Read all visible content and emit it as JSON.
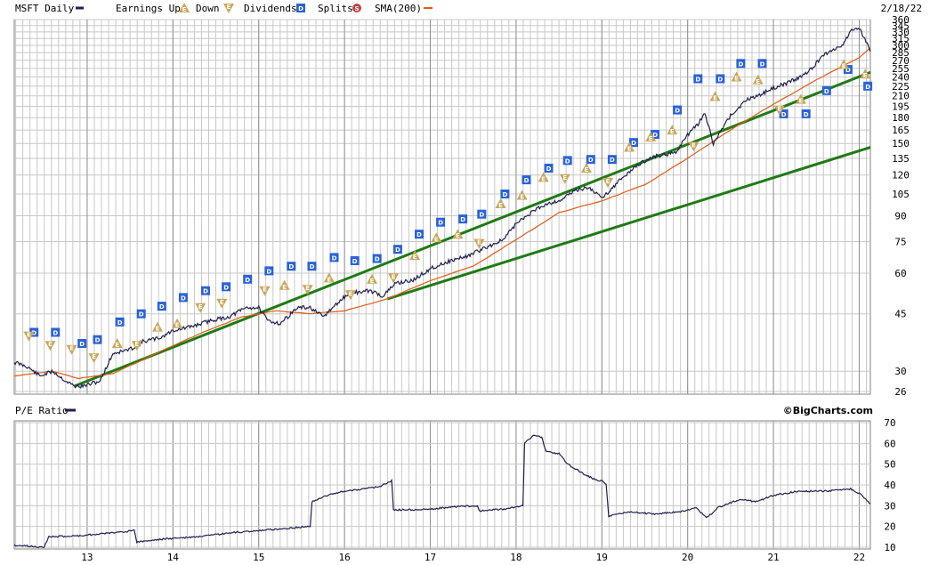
{
  "header": {
    "symbol_label": "MSFT Daily",
    "earnings_up_label": "Earnings Up",
    "earnings_down_label": "Down",
    "dividends_label": "Dividends",
    "splits_label": "Splits",
    "sma_label": "SMA(200)",
    "date": "2/18/22"
  },
  "lower_header": {
    "pe_label": "P/E Ratio",
    "brand": "©BigCharts.com"
  },
  "colors": {
    "price": "#20204e",
    "sma": "#e05a14",
    "trendline": "#1f7a14",
    "dividend": "#2a62d8",
    "earnings": "#c9a65a",
    "split": "#c94040",
    "grid": "#c8c8c8"
  },
  "icons": {
    "earnings_up": "triangle-up-E",
    "earnings_down": "triangle-down-E",
    "dividend": "blue-square-D",
    "split": "red-circle-S"
  },
  "chart_data": [
    {
      "type": "line",
      "scale": "log",
      "x_ticks": [
        "13",
        "14",
        "15",
        "16",
        "17",
        "18",
        "19",
        "20",
        "21",
        "22"
      ],
      "x_tick_values": [
        2013,
        2014,
        2015,
        2016,
        2017,
        2018,
        2019,
        2020,
        2021,
        2022
      ],
      "xlim": [
        2012.15,
        2022.13
      ],
      "y_ticks": [
        26,
        30,
        45,
        60,
        75,
        90,
        105,
        120,
        135,
        150,
        165,
        180,
        195,
        210,
        225,
        240,
        255,
        270,
        285,
        300,
        315,
        330,
        345,
        360
      ],
      "ylim": [
        26,
        360
      ],
      "series": [
        {
          "name": "MSFT Daily",
          "x": [
            2012.15,
            2012.3,
            2012.45,
            2012.6,
            2012.75,
            2012.85,
            2012.95,
            2013.15,
            2013.3,
            2013.5,
            2013.65,
            2013.85,
            2014.0,
            2014.2,
            2014.45,
            2014.65,
            2014.85,
            2015.0,
            2015.1,
            2015.25,
            2015.45,
            2015.6,
            2015.75,
            2015.9,
            2016.05,
            2016.3,
            2016.45,
            2016.6,
            2016.8,
            2017.0,
            2017.2,
            2017.45,
            2017.65,
            2017.85,
            2018.0,
            2018.2,
            2018.35,
            2018.5,
            2018.7,
            2018.85,
            2019.0,
            2019.2,
            2019.4,
            2019.6,
            2019.85,
            2020.0,
            2020.12,
            2020.2,
            2020.3,
            2020.5,
            2020.7,
            2020.9,
            2021.0,
            2021.2,
            2021.4,
            2021.6,
            2021.8,
            2021.9,
            2022.0,
            2022.13
          ],
          "y": [
            32,
            31,
            29,
            30,
            28,
            27,
            27,
            28,
            34,
            35,
            37,
            38,
            40,
            41,
            43,
            44,
            47,
            47,
            43,
            42,
            47,
            47,
            44,
            48,
            52,
            53,
            51,
            56,
            57,
            62,
            65,
            68,
            72,
            76,
            85,
            93,
            98,
            100,
            108,
            110,
            102,
            115,
            128,
            137,
            140,
            159,
            172,
            185,
            150,
            183,
            205,
            215,
            222,
            232,
            248,
            283,
            300,
            333,
            340,
            287
          ]
        },
        {
          "name": "SMA(200)",
          "x": [
            2012.15,
            2012.6,
            2012.9,
            2013.3,
            2013.8,
            2014.3,
            2014.8,
            2015.2,
            2015.6,
            2016.0,
            2016.5,
            2017.0,
            2017.5,
            2018.0,
            2018.5,
            2019.0,
            2019.5,
            2020.0,
            2020.5,
            2021.0,
            2021.5,
            2022.0,
            2022.13
          ],
          "y": [
            29,
            30,
            28.5,
            29.5,
            34,
            39,
            44,
            46,
            45,
            46,
            50,
            57,
            63,
            76,
            92,
            100,
            112,
            135,
            165,
            198,
            235,
            275,
            295
          ]
        }
      ],
      "trendlines": [
        {
          "x": [
            2012.85,
            2022.13
          ],
          "y": [
            27,
            248
          ]
        },
        {
          "x": [
            2016.5,
            2022.13
          ],
          "y": [
            50,
            146
          ]
        }
      ],
      "annotations": {
        "dividends": [
          {
            "x": 2012.38,
            "y": 39.5
          },
          {
            "x": 2012.63,
            "y": 39.5
          },
          {
            "x": 2012.94,
            "y": 36.5
          },
          {
            "x": 2013.12,
            "y": 37.5
          },
          {
            "x": 2013.38,
            "y": 42.5
          },
          {
            "x": 2013.63,
            "y": 45
          },
          {
            "x": 2013.87,
            "y": 47.5
          },
          {
            "x": 2014.12,
            "y": 50.5
          },
          {
            "x": 2014.38,
            "y": 53
          },
          {
            "x": 2014.62,
            "y": 54.5
          },
          {
            "x": 2014.87,
            "y": 57.5
          },
          {
            "x": 2015.12,
            "y": 61
          },
          {
            "x": 2015.38,
            "y": 63
          },
          {
            "x": 2015.62,
            "y": 63
          },
          {
            "x": 2015.88,
            "y": 67
          },
          {
            "x": 2016.12,
            "y": 65.5
          },
          {
            "x": 2016.38,
            "y": 66.5
          },
          {
            "x": 2016.62,
            "y": 71
          },
          {
            "x": 2016.87,
            "y": 79
          },
          {
            "x": 2017.12,
            "y": 86
          },
          {
            "x": 2017.38,
            "y": 88
          },
          {
            "x": 2017.6,
            "y": 91
          },
          {
            "x": 2017.87,
            "y": 105
          },
          {
            "x": 2018.12,
            "y": 116
          },
          {
            "x": 2018.38,
            "y": 126
          },
          {
            "x": 2018.6,
            "y": 133
          },
          {
            "x": 2018.87,
            "y": 134
          },
          {
            "x": 2019.12,
            "y": 134
          },
          {
            "x": 2019.37,
            "y": 151
          },
          {
            "x": 2019.62,
            "y": 160
          },
          {
            "x": 2019.88,
            "y": 190
          },
          {
            "x": 2020.12,
            "y": 237
          },
          {
            "x": 2020.38,
            "y": 237
          },
          {
            "x": 2020.62,
            "y": 264
          },
          {
            "x": 2020.87,
            "y": 264
          },
          {
            "x": 2021.12,
            "y": 185
          },
          {
            "x": 2021.38,
            "y": 185
          },
          {
            "x": 2021.62,
            "y": 218
          },
          {
            "x": 2021.87,
            "y": 253
          },
          {
            "x": 2022.1,
            "y": 225
          }
        ],
        "earnings_up": [
          {
            "x": 2013.35,
            "y": 36.5
          },
          {
            "x": 2013.82,
            "y": 41
          },
          {
            "x": 2014.05,
            "y": 42
          },
          {
            "x": 2015.3,
            "y": 55
          },
          {
            "x": 2015.82,
            "y": 58
          },
          {
            "x": 2016.32,
            "y": 57.5
          },
          {
            "x": 2016.82,
            "y": 68
          },
          {
            "x": 2017.07,
            "y": 77
          },
          {
            "x": 2017.32,
            "y": 79
          },
          {
            "x": 2017.82,
            "y": 98
          },
          {
            "x": 2018.07,
            "y": 104
          },
          {
            "x": 2018.32,
            "y": 118
          },
          {
            "x": 2018.82,
            "y": 126
          },
          {
            "x": 2019.32,
            "y": 146
          },
          {
            "x": 2019.57,
            "y": 157
          },
          {
            "x": 2019.82,
            "y": 165
          },
          {
            "x": 2020.32,
            "y": 209
          },
          {
            "x": 2020.57,
            "y": 240
          },
          {
            "x": 2020.82,
            "y": 235
          },
          {
            "x": 2021.32,
            "y": 205
          },
          {
            "x": 2021.82,
            "y": 262
          },
          {
            "x": 2022.07,
            "y": 245
          }
        ],
        "earnings_down": [
          {
            "x": 2012.32,
            "y": 38.5
          },
          {
            "x": 2012.57,
            "y": 36
          },
          {
            "x": 2012.82,
            "y": 35
          },
          {
            "x": 2013.08,
            "y": 33
          },
          {
            "x": 2013.58,
            "y": 36
          },
          {
            "x": 2014.32,
            "y": 47
          },
          {
            "x": 2014.57,
            "y": 48.5
          },
          {
            "x": 2015.07,
            "y": 53
          },
          {
            "x": 2015.57,
            "y": 53.5
          },
          {
            "x": 2016.07,
            "y": 51.5
          },
          {
            "x": 2016.57,
            "y": 58
          },
          {
            "x": 2017.57,
            "y": 74
          },
          {
            "x": 2018.57,
            "y": 117
          },
          {
            "x": 2019.07,
            "y": 114
          },
          {
            "x": 2020.07,
            "y": 147
          },
          {
            "x": 2021.07,
            "y": 190
          }
        ],
        "splits": []
      }
    },
    {
      "type": "line",
      "x_ticks": [
        "13",
        "14",
        "15",
        "16",
        "17",
        "18",
        "19",
        "20",
        "21",
        "22"
      ],
      "x_tick_values": [
        2013,
        2014,
        2015,
        2016,
        2017,
        2018,
        2019,
        2020,
        2021,
        2022
      ],
      "xlim": [
        2012.15,
        2022.13
      ],
      "y_ticks": [
        10,
        20,
        30,
        40,
        50,
        60,
        70
      ],
      "ylim": [
        10,
        70
      ],
      "series": [
        {
          "name": "P/E Ratio",
          "x": [
            2012.15,
            2012.5,
            2012.55,
            2012.9,
            2013.3,
            2013.55,
            2013.58,
            2013.9,
            2014.3,
            2014.7,
            2015.0,
            2015.3,
            2015.6,
            2015.62,
            2015.8,
            2016.0,
            2016.2,
            2016.4,
            2016.55,
            2016.57,
            2016.9,
            2017.3,
            2017.55,
            2017.57,
            2017.9,
            2018.08,
            2018.1,
            2018.2,
            2018.3,
            2018.35,
            2018.5,
            2018.6,
            2018.8,
            2018.95,
            2019.0,
            2019.05,
            2019.08,
            2019.3,
            2019.6,
            2019.9,
            2020.1,
            2020.22,
            2020.35,
            2020.6,
            2020.8,
            2021.0,
            2021.3,
            2021.6,
            2021.9,
            2022.0,
            2022.13
          ],
          "y": [
            11,
            10,
            15,
            15.5,
            17,
            18,
            12.5,
            14,
            15,
            17,
            18,
            19,
            20,
            32,
            35,
            37,
            38,
            39,
            42,
            28,
            28,
            29.5,
            30,
            27.5,
            28.5,
            30,
            60,
            64,
            63,
            56,
            55,
            50,
            45,
            42,
            42,
            40,
            25,
            27,
            26,
            27,
            29,
            24,
            29,
            33,
            32,
            35,
            37,
            37,
            38,
            36,
            31
          ]
        }
      ]
    }
  ]
}
